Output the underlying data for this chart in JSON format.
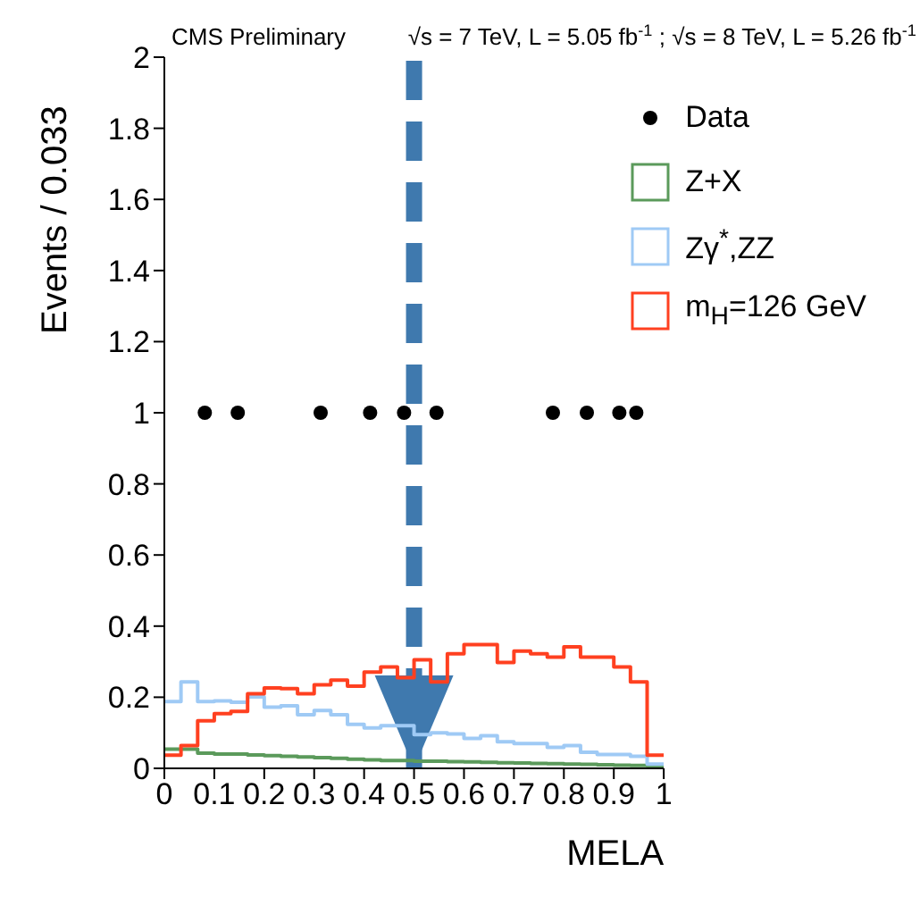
{
  "chart_data": {
    "type": "histogram",
    "title": "CMS Preliminary",
    "subtitle": "√s = 7 TeV, L = 5.05 fb$^{-1}$ ; √s = 8 TeV, L = 5.26 fb$^{-1}$",
    "xlabel": "MELA",
    "ylabel": "Events / 0.033",
    "bins": [
      0,
      0.0333,
      0.0667,
      0.1,
      0.1333,
      0.1667,
      0.2,
      0.2333,
      0.2667,
      0.3,
      0.3333,
      0.3667,
      0.4,
      0.4333,
      0.4667,
      0.5,
      0.5333,
      0.5667,
      0.6,
      0.6333,
      0.6667,
      0.7,
      0.7333,
      0.7667,
      0.8,
      0.8333,
      0.8667,
      0.9,
      0.9333,
      0.9667,
      1
    ],
    "series": [
      {
        "name": "Data",
        "type": "scatter",
        "color": "#000000",
        "x": [
          0.081,
          0.147,
          0.313,
          0.412,
          0.48,
          0.545,
          0.778,
          0.846,
          0.911,
          0.945
        ],
        "values": [
          1,
          1,
          1,
          1,
          1,
          1,
          1,
          1,
          1,
          1
        ]
      },
      {
        "name": "Z+X",
        "color": "#5b9a5b",
        "values": [
          0.054,
          0.054,
          0.043,
          0.04,
          0.04,
          0.038,
          0.036,
          0.034,
          0.032,
          0.03,
          0.028,
          0.026,
          0.024,
          0.022,
          0.022,
          0.02,
          0.02,
          0.019,
          0.018,
          0.017,
          0.016,
          0.015,
          0.014,
          0.013,
          0.012,
          0.011,
          0.01,
          0.009,
          0.008,
          0.007
        ]
      },
      {
        "name": "Zγ$^{*}$,ZZ",
        "color": "#9fcaf5",
        "values": [
          0.188,
          0.243,
          0.188,
          0.19,
          0.186,
          0.201,
          0.172,
          0.176,
          0.151,
          0.163,
          0.151,
          0.124,
          0.114,
          0.12,
          0.12,
          0.095,
          0.1,
          0.097,
          0.084,
          0.092,
          0.075,
          0.07,
          0.07,
          0.059,
          0.064,
          0.045,
          0.039,
          0.039,
          0.034,
          0.012
        ]
      },
      {
        "name": "m$_{H}$=126 GeV",
        "color": "#ff4020",
        "values": [
          0.037,
          0.064,
          0.134,
          0.154,
          0.16,
          0.21,
          0.226,
          0.224,
          0.21,
          0.235,
          0.248,
          0.231,
          0.271,
          0.285,
          0.255,
          0.305,
          0.243,
          0.322,
          0.348,
          0.348,
          0.298,
          0.33,
          0.322,
          0.313,
          0.342,
          0.313,
          0.313,
          0.285,
          0.243,
          0.037
        ]
      }
    ],
    "xlim": [
      0,
      1
    ],
    "xticks": [
      0,
      0.1,
      0.2,
      0.3,
      0.4,
      0.5,
      0.6,
      0.7,
      0.8,
      0.9,
      1
    ],
    "ylim": [
      0,
      2
    ],
    "yticks": [
      0,
      0.2,
      0.4,
      0.6,
      0.8,
      1,
      1.2,
      1.4,
      1.6,
      1.8,
      2
    ],
    "ref_lines": [
      {
        "axis": "x",
        "value": 0.5,
        "color": "#3f79ae",
        "line_style": "dashed"
      }
    ],
    "legend": "top right",
    "marker": "circle"
  }
}
